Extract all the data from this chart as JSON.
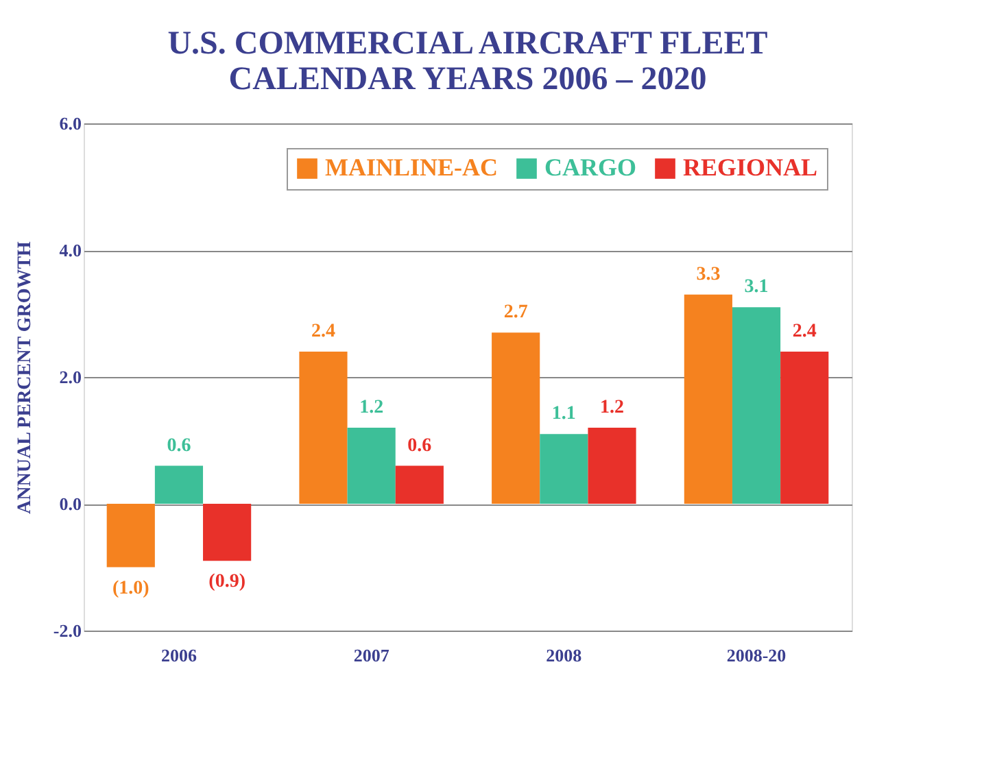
{
  "chart_data": {
    "type": "bar",
    "title": [
      "U.S. COMMERCIAL AIRCRAFT FLEET",
      "CALENDAR YEARS 2006 – 2020"
    ],
    "ylabel": "ANNUAL PERCENT GROWTH",
    "categories": [
      "2006",
      "2007",
      "2008",
      "2008-20"
    ],
    "series": [
      {
        "name": "MAINLINE-AC",
        "color": "#f5821f",
        "values": [
          -1.0,
          2.4,
          2.7,
          3.3
        ],
        "value_labels": [
          "(1.0)",
          "2.4",
          "2.7",
          "3.3"
        ]
      },
      {
        "name": "CARGO",
        "color": "#3dbf98",
        "values": [
          0.6,
          1.2,
          1.1,
          3.1
        ],
        "value_labels": [
          "0.6",
          "1.2",
          "1.1",
          "3.1"
        ]
      },
      {
        "name": "REGIONAL",
        "color": "#e8312a",
        "values": [
          -0.9,
          0.6,
          1.2,
          2.4
        ],
        "value_labels": [
          "(0.9)",
          "0.6",
          "1.2",
          "2.4"
        ]
      }
    ],
    "ylim": [
      -2,
      6
    ],
    "yticks": [
      {
        "value": -2,
        "label": "-2.0"
      },
      {
        "value": 0,
        "label": "0.0"
      },
      {
        "value": 2,
        "label": "2.0"
      },
      {
        "value": 4,
        "label": "4.0"
      },
      {
        "value": 6,
        "label": "6.0"
      }
    ],
    "grid": "y",
    "legend": "top right"
  }
}
